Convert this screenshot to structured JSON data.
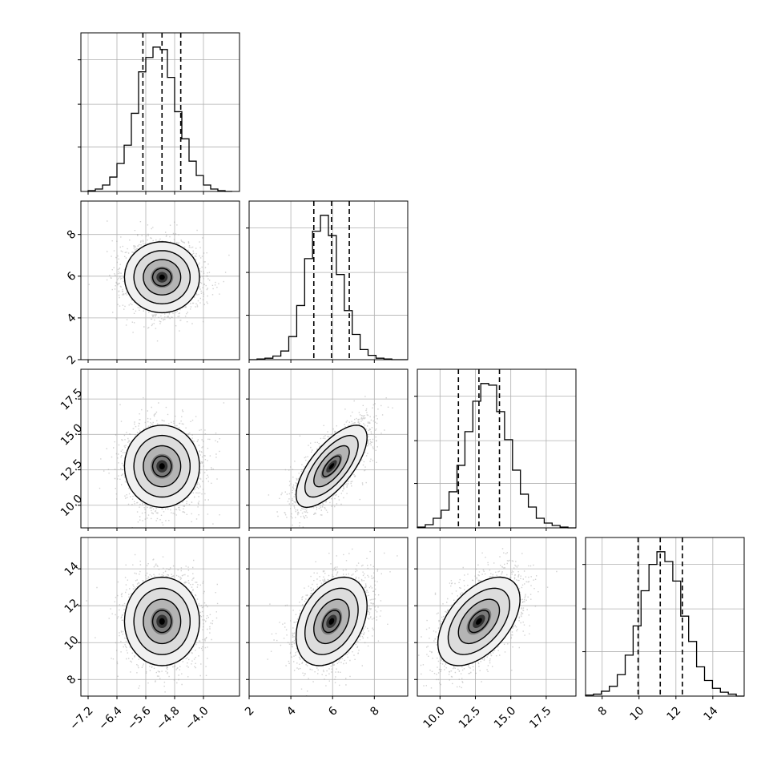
{
  "chart_data": {
    "type": "corner",
    "title": "",
    "grid": true,
    "parameters": [
      {
        "range": [
          -7.4,
          -3.0
        ],
        "ticks": [
          -7.2,
          -6.4,
          -5.6,
          -4.8,
          -4.0
        ],
        "tick_labels": [
          "−7.2",
          "−6.4",
          "−5.6",
          "−4.8",
          "−4.0"
        ],
        "median": -5.15,
        "q16": -5.68,
        "q84": -4.63,
        "sigma": 0.52
      },
      {
        "range": [
          2.0,
          9.6
        ],
        "ticks": [
          2,
          4,
          6,
          8
        ],
        "tick_labels": [
          "2",
          "4",
          "6",
          "8"
        ],
        "median": 5.95,
        "q16": 5.1,
        "q84": 6.8,
        "sigma": 0.85
      },
      {
        "range": [
          8.4,
          19.6
        ],
        "ticks": [
          10.0,
          12.5,
          15.0,
          17.5
        ],
        "tick_labels": [
          "10.0",
          "12.5",
          "15.0",
          "17.5"
        ],
        "median": 12.75,
        "q16": 11.3,
        "q84": 14.2,
        "sigma": 1.45
      },
      {
        "range": [
          7.1,
          15.7
        ],
        "ticks": [
          8,
          10,
          12,
          14
        ],
        "tick_labels": [
          "8",
          "10",
          "12",
          "14"
        ],
        "median": 11.15,
        "q16": 9.95,
        "q84": 12.35,
        "sigma": 1.2
      }
    ],
    "correlations": {
      "0-1": 0.0,
      "0-2": 0.0,
      "0-3": 0.0,
      "1-2": 0.7,
      "1-3": 0.35,
      "2-3": 0.5
    },
    "histograms": [
      {
        "bins": [
          -7.2,
          -3.2
        ],
        "counts": [
          1,
          3,
          8,
          18,
          35,
          58,
          98,
          150,
          168,
          181,
          178,
          143,
          100,
          66,
          38,
          20,
          8,
          3,
          1,
          0
        ]
      },
      {
        "bins": [
          2.0,
          9.6
        ],
        "counts": [
          0,
          1,
          2,
          5,
          12,
          32,
          75,
          140,
          178,
          200,
          172,
          118,
          68,
          35,
          14,
          6,
          2,
          1,
          0,
          0
        ]
      },
      {
        "bins": [
          8.4,
          19.6
        ],
        "counts": [
          1,
          4,
          12,
          22,
          45,
          78,
          120,
          158,
          180,
          178,
          145,
          110,
          72,
          42,
          26,
          12,
          6,
          3,
          1,
          0
        ]
      },
      {
        "bins": [
          7.1,
          15.7
        ],
        "counts": [
          1,
          2,
          5,
          10,
          22,
          42,
          72,
          108,
          135,
          148,
          138,
          118,
          82,
          56,
          30,
          16,
          8,
          4,
          2,
          0
        ]
      }
    ]
  }
}
